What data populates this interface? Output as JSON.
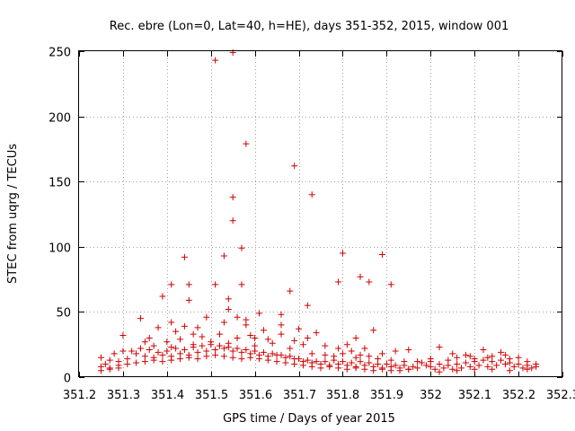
{
  "chart_data": {
    "type": "scatter",
    "title": "Rec. ebre (Lon=0, Lat=40, h=HE), days 351-352, 2015, window 001",
    "xlabel": "GPS time / Days of year 2015",
    "ylabel": "STEC from uqrg / TECUs",
    "xlim": [
      351.2,
      352.3
    ],
    "ylim": [
      0,
      250
    ],
    "xticks": [
      "351.2",
      "351.3",
      "351.4",
      "351.5",
      "351.6",
      "351.7",
      "351.8",
      "351.9",
      "352",
      "352.1",
      "352.2",
      "352.3"
    ],
    "yticks": [
      "0",
      "50",
      "100",
      "150",
      "200",
      "250"
    ],
    "grid": true,
    "color": "#d00000",
    "marker": "plus",
    "series": [
      {
        "points": [
          [
            351.51,
            243
          ],
          [
            351.55,
            249
          ],
          [
            351.58,
            179
          ],
          [
            351.69,
            162
          ],
          [
            351.73,
            140
          ],
          [
            351.55,
            138
          ],
          [
            351.55,
            120
          ],
          [
            351.57,
            99
          ],
          [
            351.53,
            93
          ],
          [
            351.44,
            92
          ],
          [
            351.89,
            94
          ],
          [
            351.8,
            95
          ],
          [
            351.84,
            77
          ],
          [
            351.86,
            73
          ],
          [
            351.79,
            73
          ],
          [
            351.91,
            71
          ],
          [
            351.39,
            62
          ],
          [
            351.41,
            71
          ],
          [
            351.45,
            71
          ],
          [
            351.51,
            71
          ],
          [
            351.57,
            71
          ],
          [
            351.68,
            66
          ],
          [
            351.72,
            55
          ],
          [
            351.45,
            59
          ],
          [
            351.54,
            60
          ],
          [
            351.54,
            52
          ],
          [
            351.61,
            49
          ],
          [
            351.66,
            48
          ],
          [
            351.34,
            45
          ],
          [
            351.49,
            46
          ],
          [
            351.56,
            46
          ],
          [
            351.58,
            44
          ],
          [
            351.41,
            42
          ],
          [
            351.53,
            42
          ],
          [
            351.58,
            40
          ],
          [
            351.44,
            39
          ],
          [
            351.47,
            38
          ],
          [
            351.38,
            38
          ],
          [
            351.7,
            37
          ],
          [
            351.74,
            34
          ],
          [
            351.83,
            30
          ],
          [
            351.81,
            25
          ],
          [
            351.87,
            36
          ],
          [
            351.85,
            22
          ],
          [
            351.89,
            18
          ],
          [
            351.92,
            20
          ],
          [
            351.95,
            21
          ],
          [
            351.97,
            12
          ],
          [
            351.3,
            32
          ],
          [
            351.43,
            29
          ],
          [
            351.4,
            27
          ],
          [
            351.48,
            31
          ],
          [
            351.52,
            33
          ],
          [
            351.56,
            30
          ],
          [
            351.59,
            32
          ],
          [
            351.63,
            29
          ],
          [
            351.66,
            33
          ],
          [
            351.69,
            28
          ],
          [
            351.71,
            25
          ],
          [
            351.35,
            27
          ],
          [
            351.37,
            24
          ],
          [
            351.41,
            23
          ],
          [
            351.46,
            25
          ],
          [
            351.5,
            27
          ],
          [
            351.54,
            26
          ],
          [
            351.6,
            24
          ],
          [
            351.64,
            26
          ],
          [
            351.68,
            22
          ],
          [
            351.73,
            18
          ],
          [
            351.76,
            17
          ],
          [
            351.78,
            16
          ],
          [
            351.8,
            18
          ],
          [
            351.83,
            15
          ],
          [
            351.86,
            16
          ],
          [
            351.88,
            14
          ],
          [
            351.91,
            13
          ],
          [
            351.94,
            12
          ],
          [
            351.25,
            15
          ],
          [
            351.27,
            13
          ],
          [
            351.29,
            12
          ],
          [
            351.31,
            14
          ],
          [
            351.33,
            18
          ],
          [
            351.35,
            16
          ],
          [
            351.37,
            15
          ],
          [
            351.39,
            17
          ],
          [
            351.41,
            16
          ],
          [
            351.43,
            18
          ],
          [
            351.45,
            17
          ],
          [
            351.47,
            19
          ],
          [
            351.49,
            20
          ],
          [
            351.51,
            21
          ],
          [
            351.53,
            22
          ],
          [
            351.55,
            20
          ],
          [
            351.57,
            19
          ],
          [
            351.59,
            18
          ],
          [
            351.61,
            17
          ],
          [
            351.63,
            16
          ],
          [
            351.65,
            17
          ],
          [
            351.67,
            15
          ],
          [
            351.69,
            14
          ],
          [
            351.71,
            12
          ],
          [
            351.73,
            11
          ],
          [
            351.75,
            10
          ],
          [
            351.77,
            9
          ],
          [
            351.79,
            10
          ],
          [
            351.81,
            9
          ],
          [
            351.83,
            8
          ],
          [
            351.85,
            9
          ],
          [
            351.87,
            8
          ],
          [
            351.89,
            7
          ],
          [
            351.91,
            8
          ],
          [
            351.93,
            7
          ],
          [
            351.95,
            6
          ],
          [
            351.97,
            7
          ],
          [
            351.25,
            8
          ],
          [
            351.27,
            7
          ],
          [
            351.29,
            9
          ],
          [
            351.31,
            10
          ],
          [
            351.33,
            11
          ],
          [
            351.35,
            12
          ],
          [
            351.37,
            13
          ],
          [
            351.39,
            12
          ],
          [
            351.41,
            13
          ],
          [
            351.43,
            14
          ],
          [
            351.45,
            15
          ],
          [
            351.47,
            14
          ],
          [
            351.49,
            16
          ],
          [
            351.51,
            17
          ],
          [
            351.53,
            16
          ],
          [
            351.55,
            15
          ],
          [
            351.57,
            14
          ],
          [
            351.59,
            15
          ],
          [
            351.61,
            14
          ],
          [
            351.63,
            13
          ],
          [
            351.65,
            12
          ],
          [
            351.67,
            11
          ],
          [
            351.69,
            10
          ],
          [
            351.71,
            9
          ],
          [
            351.73,
            8
          ],
          [
            351.75,
            7
          ],
          [
            351.77,
            8
          ],
          [
            351.79,
            7
          ],
          [
            351.81,
            6
          ],
          [
            351.83,
            7
          ],
          [
            351.85,
            6
          ],
          [
            351.87,
            5
          ],
          [
            351.89,
            6
          ],
          [
            351.91,
            5
          ],
          [
            351.93,
            5
          ],
          [
            351.95,
            6
          ],
          [
            351.25,
            5
          ],
          [
            351.27,
            6
          ],
          [
            351.29,
            7
          ],
          [
            351.32,
            20
          ],
          [
            351.34,
            22
          ],
          [
            351.36,
            21
          ],
          [
            351.38,
            19
          ],
          [
            351.4,
            20
          ],
          [
            351.42,
            22
          ],
          [
            351.44,
            21
          ],
          [
            351.46,
            23
          ],
          [
            351.48,
            24
          ],
          [
            351.5,
            25
          ],
          [
            351.52,
            24
          ],
          [
            351.54,
            23
          ],
          [
            351.56,
            22
          ],
          [
            351.58,
            21
          ],
          [
            351.6,
            20
          ],
          [
            351.62,
            19
          ],
          [
            351.64,
            18
          ],
          [
            351.66,
            17
          ],
          [
            351.68,
            16
          ],
          [
            351.7,
            14
          ],
          [
            351.72,
            13
          ],
          [
            351.74,
            12
          ],
          [
            351.76,
            12
          ],
          [
            351.78,
            13
          ],
          [
            351.8,
            12
          ],
          [
            351.82,
            11
          ],
          [
            351.84,
            12
          ],
          [
            351.86,
            11
          ],
          [
            351.88,
            10
          ],
          [
            351.9,
            10
          ],
          [
            351.92,
            9
          ],
          [
            351.94,
            9
          ],
          [
            351.96,
            8
          ],
          [
            351.28,
            18
          ],
          [
            351.3,
            20
          ],
          [
            351.26,
            10
          ],
          [
            351.36,
            30
          ],
          [
            351.42,
            35
          ],
          [
            351.46,
            33
          ],
          [
            351.62,
            36
          ],
          [
            351.66,
            40
          ],
          [
            351.72,
            30
          ],
          [
            351.6,
            30
          ],
          [
            351.76,
            24
          ],
          [
            351.79,
            22
          ],
          [
            351.82,
            20
          ],
          [
            351.84,
            17
          ],
          [
            352.02,
            23
          ],
          [
            352.04,
            13
          ],
          [
            352.06,
            15
          ],
          [
            352.08,
            17
          ],
          [
            352.1,
            14
          ],
          [
            352.12,
            21
          ],
          [
            352.14,
            16
          ],
          [
            352.16,
            19
          ],
          [
            352.18,
            14
          ],
          [
            352.2,
            15
          ],
          [
            352.22,
            12
          ],
          [
            352.24,
            10
          ],
          [
            352.0,
            12
          ],
          [
            352.0,
            8
          ],
          [
            352.02,
            10
          ],
          [
            352.04,
            9
          ],
          [
            352.06,
            10
          ],
          [
            352.08,
            11
          ],
          [
            352.1,
            12
          ],
          [
            352.12,
            13
          ],
          [
            352.14,
            12
          ],
          [
            352.16,
            13
          ],
          [
            352.18,
            11
          ],
          [
            352.2,
            10
          ],
          [
            352.22,
            9
          ],
          [
            352.24,
            8
          ],
          [
            352.01,
            6
          ],
          [
            352.03,
            7
          ],
          [
            352.05,
            6
          ],
          [
            352.07,
            7
          ],
          [
            352.09,
            8
          ],
          [
            352.11,
            9
          ],
          [
            352.13,
            8
          ],
          [
            352.15,
            9
          ],
          [
            352.17,
            10
          ],
          [
            352.19,
            8
          ],
          [
            352.21,
            7
          ],
          [
            352.23,
            7
          ],
          [
            352.02,
            4
          ],
          [
            352.06,
            5
          ],
          [
            352.1,
            6
          ],
          [
            352.14,
            6
          ],
          [
            352.18,
            5
          ],
          [
            352.22,
            6
          ],
          [
            352.05,
            18
          ],
          [
            352.09,
            16
          ],
          [
            352.13,
            15
          ],
          [
            352.17,
            17
          ],
          [
            351.99,
            9
          ],
          [
            351.98,
            11
          ],
          [
            352.0,
            14
          ]
        ]
      }
    ]
  }
}
